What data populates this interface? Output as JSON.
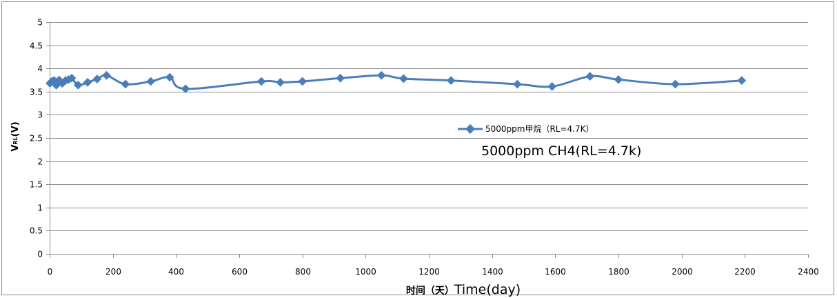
{
  "chart_data": {
    "type": "line",
    "ylabel": "V",
    "ylabel_subscript": "RL",
    "ylabel_suffix": "(V)",
    "xlabel_cn": "时间（天）",
    "xlabel_en": "Time(day)",
    "xlim": [
      0,
      2400
    ],
    "ylim": [
      0,
      5
    ],
    "xticks": [
      0,
      200,
      400,
      600,
      800,
      1000,
      1200,
      1400,
      1600,
      1800,
      2000,
      2200,
      2400
    ],
    "yticks": [
      0,
      0.5,
      1,
      1.5,
      2,
      2.5,
      3,
      3.5,
      4,
      4.5,
      5
    ],
    "grid": "horizontal",
    "legend_position": "center-right",
    "annotation": "5000ppm CH4(RL=4.7k)",
    "series": [
      {
        "name": "5000ppm甲烷（RL=4.7K）",
        "color": "#4a7ebb",
        "x": [
          1,
          7,
          14,
          21,
          30,
          40,
          50,
          60,
          70,
          90,
          120,
          150,
          180,
          240,
          320,
          380,
          430,
          670,
          730,
          800,
          920,
          1050,
          1120,
          1270,
          1480,
          1590,
          1710,
          1800,
          1980,
          2190
        ],
        "y": [
          3.68,
          3.72,
          3.74,
          3.64,
          3.75,
          3.68,
          3.74,
          3.76,
          3.79,
          3.64,
          3.7,
          3.77,
          3.85,
          3.66,
          3.72,
          3.81,
          3.56,
          3.72,
          3.7,
          3.72,
          3.79,
          3.85,
          3.78,
          3.74,
          3.66,
          3.61,
          3.83,
          3.76,
          3.66,
          3.74
        ]
      }
    ]
  }
}
